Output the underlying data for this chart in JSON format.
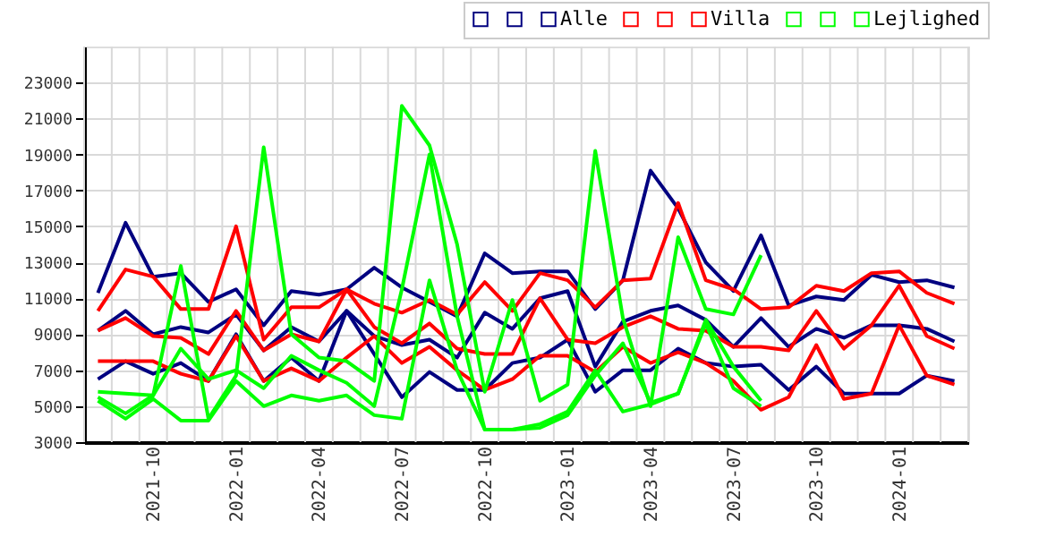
{
  "chart_data": {
    "type": "line",
    "categories": [
      null,
      null,
      "2021-10",
      null,
      null,
      "2022-01",
      null,
      null,
      "2022-04",
      null,
      null,
      "2022-07",
      null,
      null,
      "2022-10",
      null,
      null,
      "2023-01",
      null,
      null,
      "2023-04",
      null,
      null,
      "2023-07",
      null,
      null,
      "2023-10",
      null,
      null,
      "2024-01",
      null,
      null
    ],
    "series": [
      {
        "color": "#000080",
        "values": [
          11300,
          15200,
          12200,
          12400,
          10800,
          11500,
          9500,
          11400,
          11200,
          11500,
          12700,
          11600,
          10800,
          10000,
          13500,
          12400,
          12500,
          12500,
          10400,
          12000,
          18100,
          16000,
          13000,
          11400,
          14500,
          10600,
          11100,
          10900,
          12300,
          11900,
          12000,
          11600
        ]
      },
      {
        "color": "#000080",
        "values": [
          9200,
          10300,
          9000,
          9400,
          9100,
          10100,
          8100,
          9400,
          8600,
          10300,
          8900,
          8400,
          8700,
          7700,
          10200,
          9300,
          11000,
          11400,
          7200,
          9700,
          10300,
          10600,
          9800,
          8300,
          9900,
          8300,
          9300,
          8800,
          9500,
          9500,
          9300,
          8600
        ]
      },
      {
        "name": "Alle",
        "color": "#000080",
        "values": [
          6500,
          7500,
          6800,
          7400,
          6400,
          9000,
          6400,
          7700,
          6400,
          10300,
          7900,
          5500,
          6900,
          5900,
          5900,
          7400,
          7700,
          8700,
          5800,
          7000,
          7000,
          8200,
          7400,
          7200,
          7300,
          5900,
          7200,
          5700,
          5700,
          5700,
          6700,
          6400
        ]
      },
      {
        "color": "#ff0000",
        "values": [
          10300,
          12600,
          12200,
          10400,
          10400,
          15000,
          8700,
          10500,
          10500,
          11500,
          10700,
          10200,
          10900,
          10100,
          11900,
          10300,
          12400,
          12000,
          10500,
          12000,
          12100,
          16300,
          12000,
          11500,
          10400,
          10500,
          11700,
          11400,
          12400,
          12500,
          11300,
          10700
        ]
      },
      {
        "color": "#ff0000",
        "values": [
          9200,
          9900,
          8900,
          8800,
          7900,
          10300,
          8100,
          9000,
          8600,
          11500,
          9400,
          8500,
          9600,
          8200,
          7900,
          7900,
          11000,
          8700,
          8500,
          9400,
          10000,
          9300,
          9200,
          8300,
          8300,
          8100,
          10300,
          8200,
          9500,
          11700,
          8900,
          8200
        ]
      },
      {
        "name": "Villa",
        "color": "#ff0000",
        "values": [
          7500,
          7500,
          7500,
          6800,
          6400,
          8900,
          6400,
          7100,
          6400,
          7700,
          8900,
          7400,
          8300,
          7000,
          5900,
          6500,
          7800,
          7800,
          6900,
          8300,
          7400,
          8000,
          7400,
          6400,
          4800,
          5500,
          8400,
          5400,
          5700,
          9500,
          6700,
          6200
        ]
      },
      {
        "color": "#00ff00",
        "values": [
          5800,
          5700,
          5600,
          12800,
          4300,
          6700,
          19400,
          9000,
          7700,
          7500,
          6400,
          21700,
          19500,
          14000,
          5800,
          10900,
          5300,
          6200,
          19200,
          9900,
          5000,
          14400,
          10400,
          10100,
          13400,
          null,
          null,
          null,
          null,
          null,
          null,
          null
        ]
      },
      {
        "color": "#00ff00",
        "values": [
          5500,
          4600,
          5600,
          8200,
          6500,
          7000,
          6000,
          7800,
          7000,
          6300,
          5000,
          11500,
          19000,
          10000,
          3700,
          3700,
          3800,
          4500,
          6700,
          8500,
          5200,
          5700,
          9800,
          7200,
          5300,
          null,
          null,
          null,
          null,
          null,
          null,
          null
        ]
      },
      {
        "name": "Lejlighed",
        "color": "#00ff00",
        "values": [
          5300,
          4300,
          5400,
          4200,
          4200,
          6400,
          5000,
          5600,
          5300,
          5600,
          4500,
          4300,
          12000,
          7000,
          3700,
          3700,
          4000,
          4700,
          7000,
          4700,
          5100,
          5700,
          9600,
          6000,
          5000,
          null,
          null,
          null,
          null,
          null,
          null,
          null
        ]
      }
    ],
    "ylim": [
      3000,
      25000
    ],
    "yticks": [
      3000,
      5000,
      7000,
      9000,
      11000,
      13000,
      15000,
      17000,
      19000,
      21000,
      23000
    ],
    "grid": true,
    "legend": "top right"
  }
}
